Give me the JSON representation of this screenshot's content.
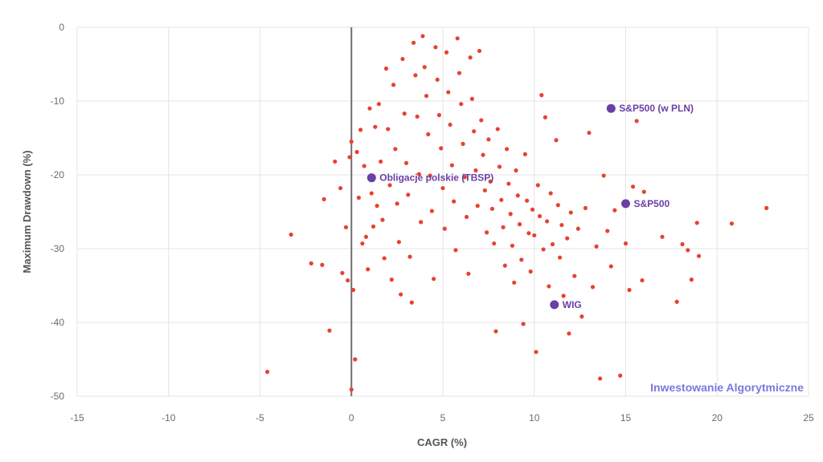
{
  "chart_data": {
    "type": "scatter",
    "xlabel": "CAGR (%)",
    "ylabel": "Maximum Drawdown (%)",
    "xlim": [
      -15,
      25
    ],
    "ylim": [
      -50,
      0
    ],
    "xticks": [
      -15,
      -10,
      -5,
      0,
      5,
      10,
      15,
      20,
      25
    ],
    "yticks": [
      0,
      -10,
      -20,
      -30,
      -40,
      -50
    ],
    "grid": true,
    "zero_line_x": 0,
    "colors": {
      "points": "#e8422e",
      "highlight": "#6a3fa6",
      "watermark": "#7b78e0"
    },
    "highlights": [
      {
        "name": "S&P500 (w PLN)",
        "x": 14.2,
        "y": -11
      },
      {
        "name": "Obligacje polskie (TBSP)",
        "x": 1.1,
        "y": -20.4
      },
      {
        "name": "S&P500",
        "x": 15.0,
        "y": -23.9
      },
      {
        "name": "WIG",
        "x": 11.1,
        "y": -37.6
      }
    ],
    "watermark": "Inwestowanie Algorytmiczne",
    "points": [
      [
        -4.6,
        -46.7
      ],
      [
        -3.3,
        -28.1
      ],
      [
        -2.2,
        -32
      ],
      [
        -1.6,
        -32.2
      ],
      [
        -1.5,
        -23.3
      ],
      [
        -1.2,
        -41.1
      ],
      [
        -0.9,
        -18.2
      ],
      [
        -0.6,
        -21.8
      ],
      [
        -0.5,
        -33.3
      ],
      [
        -0.3,
        -27.1
      ],
      [
        -0.2,
        -34.3
      ],
      [
        -0.1,
        -17.6
      ],
      [
        0,
        -15.5
      ],
      [
        0,
        -49.1
      ],
      [
        0.1,
        -35.6
      ],
      [
        0.2,
        -45
      ],
      [
        0.3,
        -16.9
      ],
      [
        0.4,
        -23.1
      ],
      [
        0.5,
        -13.9
      ],
      [
        0.6,
        -29.3
      ],
      [
        0.7,
        -18.8
      ],
      [
        0.8,
        -28.4
      ],
      [
        0.9,
        -32.8
      ],
      [
        1,
        -11
      ],
      [
        1.1,
        -22.5
      ],
      [
        1.2,
        -27
      ],
      [
        1.3,
        -13.5
      ],
      [
        1.4,
        -24.2
      ],
      [
        1.5,
        -10.4
      ],
      [
        1.6,
        -18.2
      ],
      [
        1.7,
        -26.1
      ],
      [
        1.8,
        -31.3
      ],
      [
        1.9,
        -5.6
      ],
      [
        2,
        -13.8
      ],
      [
        2.1,
        -21.4
      ],
      [
        2.2,
        -34.2
      ],
      [
        2.3,
        -7.8
      ],
      [
        2.4,
        -16.5
      ],
      [
        2.5,
        -23.9
      ],
      [
        2.6,
        -29.1
      ],
      [
        2.7,
        -36.2
      ],
      [
        2.8,
        -4.3
      ],
      [
        2.9,
        -11.7
      ],
      [
        3,
        -18.4
      ],
      [
        3.1,
        -22.7
      ],
      [
        3.2,
        -31.1
      ],
      [
        3.3,
        -37.3
      ],
      [
        3.4,
        -2.1
      ],
      [
        3.5,
        -6.5
      ],
      [
        3.6,
        -12.1
      ],
      [
        3.7,
        -19.9
      ],
      [
        3.8,
        -26.4
      ],
      [
        3.9,
        -1.2
      ],
      [
        4,
        -5.4
      ],
      [
        4.1,
        -9.3
      ],
      [
        4.2,
        -14.5
      ],
      [
        4.3,
        -20.1
      ],
      [
        4.4,
        -24.9
      ],
      [
        4.5,
        -34.1
      ],
      [
        4.6,
        -2.7
      ],
      [
        4.7,
        -7.1
      ],
      [
        4.8,
        -11.9
      ],
      [
        4.9,
        -16.4
      ],
      [
        5,
        -21.8
      ],
      [
        5.1,
        -27.3
      ],
      [
        5.2,
        -3.4
      ],
      [
        5.3,
        -8.8
      ],
      [
        5.4,
        -13.2
      ],
      [
        5.5,
        -18.7
      ],
      [
        5.6,
        -23.6
      ],
      [
        5.7,
        -30.2
      ],
      [
        5.8,
        -1.5
      ],
      [
        5.9,
        -6.2
      ],
      [
        6,
        -10.4
      ],
      [
        6.1,
        -15.8
      ],
      [
        6.2,
        -20.3
      ],
      [
        6.3,
        -25.7
      ],
      [
        6.4,
        -33.4
      ],
      [
        6.5,
        -4.1
      ],
      [
        6.6,
        -9.7
      ],
      [
        6.7,
        -14.1
      ],
      [
        6.8,
        -19.4
      ],
      [
        6.9,
        -24.2
      ],
      [
        7,
        -3.2
      ],
      [
        7.1,
        -12.6
      ],
      [
        7.2,
        -17.3
      ],
      [
        7.3,
        -22.1
      ],
      [
        7.4,
        -27.8
      ],
      [
        7.5,
        -15.2
      ],
      [
        7.6,
        -20.9
      ],
      [
        7.7,
        -24.6
      ],
      [
        7.8,
        -29.3
      ],
      [
        7.9,
        -41.2
      ],
      [
        8,
        -13.8
      ],
      [
        8.1,
        -18.9
      ],
      [
        8.2,
        -23.4
      ],
      [
        8.3,
        -27.1
      ],
      [
        8.4,
        -32.3
      ],
      [
        8.5,
        -16.5
      ],
      [
        8.6,
        -21.2
      ],
      [
        8.7,
        -25.3
      ],
      [
        8.8,
        -29.6
      ],
      [
        8.9,
        -34.6
      ],
      [
        9,
        -19.4
      ],
      [
        9.1,
        -22.8
      ],
      [
        9.2,
        -26.7
      ],
      [
        9.3,
        -31.5
      ],
      [
        9.4,
        -40.2
      ],
      [
        9.5,
        -17.2
      ],
      [
        9.6,
        -23.5
      ],
      [
        9.7,
        -27.9
      ],
      [
        9.8,
        -33.1
      ],
      [
        9.9,
        -24.7
      ],
      [
        10,
        -28.2
      ],
      [
        10.1,
        -44
      ],
      [
        10.2,
        -21.4
      ],
      [
        10.3,
        -25.6
      ],
      [
        10.4,
        -9.2
      ],
      [
        10.5,
        -30.1
      ],
      [
        10.6,
        -12.2
      ],
      [
        10.7,
        -26.3
      ],
      [
        10.8,
        -35.1
      ],
      [
        10.9,
        -22.5
      ],
      [
        11,
        -29.4
      ],
      [
        11.2,
        -15.3
      ],
      [
        11.3,
        -24.1
      ],
      [
        11.4,
        -31.2
      ],
      [
        11.5,
        -26.8
      ],
      [
        11.6,
        -36.4
      ],
      [
        11.8,
        -28.6
      ],
      [
        11.9,
        -41.5
      ],
      [
        12,
        -25.1
      ],
      [
        12.2,
        -33.7
      ],
      [
        12.4,
        -27.3
      ],
      [
        12.6,
        -39.2
      ],
      [
        12.8,
        -24.5
      ],
      [
        13,
        -14.3
      ],
      [
        13.2,
        -35.2
      ],
      [
        13.4,
        -29.7
      ],
      [
        13.6,
        -47.6
      ],
      [
        13.8,
        -20.1
      ],
      [
        14,
        -27.6
      ],
      [
        14.2,
        -32.4
      ],
      [
        14.4,
        -24.8
      ],
      [
        14.7,
        -47.2
      ],
      [
        15,
        -29.3
      ],
      [
        15.2,
        -35.6
      ],
      [
        15.4,
        -21.6
      ],
      [
        15.6,
        -12.7
      ],
      [
        15.9,
        -34.3
      ],
      [
        16,
        -22.3
      ],
      [
        17,
        -28.4
      ],
      [
        17.8,
        -37.2
      ],
      [
        18.1,
        -29.4
      ],
      [
        18.4,
        -30.2
      ],
      [
        18.6,
        -34.2
      ],
      [
        18.9,
        -26.5
      ],
      [
        19,
        -31
      ],
      [
        20.8,
        -26.6
      ],
      [
        22.7,
        -24.5
      ]
    ]
  }
}
